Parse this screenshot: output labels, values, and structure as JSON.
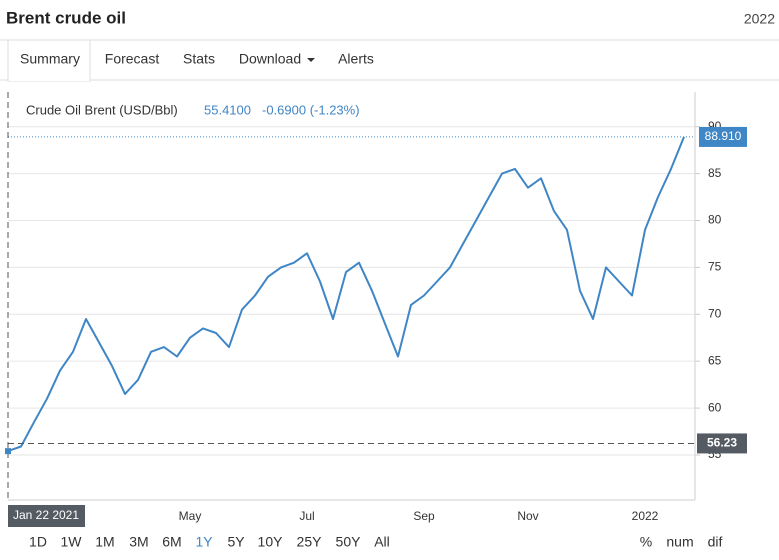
{
  "header": {
    "title": "Brent crude oil",
    "year": "2022"
  },
  "tabs": [
    {
      "label": "Summary",
      "active": true
    },
    {
      "label": "Forecast",
      "active": false
    },
    {
      "label": "Stats",
      "active": false
    },
    {
      "label": "Download",
      "active": false
    },
    {
      "label": "Alerts",
      "active": false
    }
  ],
  "chart_data": {
    "type": "line",
    "legend": {
      "name": "Crude Oil Brent (USD/Bbl)",
      "price": "55.4100",
      "change": "-0.6900 (-1.23%)"
    },
    "categories": [
      "Jan 22 2021",
      null,
      null,
      null,
      null,
      null,
      null,
      null,
      null,
      null,
      null,
      null,
      null,
      null,
      "May",
      null,
      null,
      null,
      null,
      null,
      null,
      null,
      null,
      "Jul",
      null,
      null,
      null,
      null,
      null,
      null,
      null,
      null,
      "Sep",
      null,
      null,
      null,
      null,
      null,
      null,
      null,
      "Nov",
      null,
      null,
      null,
      null,
      null,
      null,
      null,
      null,
      "2022",
      null,
      null,
      null
    ],
    "series": [
      {
        "name": "Crude Oil Brent (USD/Bbl)",
        "color": "#3f86c6",
        "values": [
          55.41,
          55.9,
          58.5,
          61.0,
          64.0,
          66.0,
          69.5,
          67.0,
          64.5,
          61.5,
          63.0,
          66.0,
          66.5,
          65.5,
          67.5,
          68.5,
          68.0,
          66.5,
          70.5,
          72.0,
          74.0,
          75.0,
          75.5,
          76.5,
          73.5,
          69.5,
          74.5,
          75.5,
          72.5,
          69.0,
          65.5,
          71.0,
          72.0,
          73.5,
          75.0,
          77.5,
          80.0,
          82.5,
          85.0,
          85.5,
          83.5,
          84.5,
          81.0,
          79.0,
          72.5,
          69.5,
          75.0,
          73.5,
          72.0,
          79.0,
          82.5,
          85.5,
          88.91
        ],
        "value_labels": [
          null,
          null,
          null,
          null,
          null,
          null,
          null,
          null,
          null,
          null,
          null,
          null,
          null,
          null,
          null,
          null,
          null,
          null,
          null,
          null,
          null,
          null,
          null,
          null,
          null,
          null,
          null,
          null,
          null,
          null,
          null,
          null,
          null,
          null,
          null,
          null,
          null,
          null,
          null,
          null,
          null,
          null,
          null,
          null,
          null,
          null,
          null,
          null,
          null,
          null,
          null,
          null,
          "88.910"
        ]
      }
    ],
    "crosshair_value": 56.23,
    "ylim": [
      50.2,
      93.7
    ],
    "yticks": [
      55,
      60,
      65,
      70,
      75,
      80,
      85,
      90
    ],
    "grid": true
  },
  "ranges": [
    {
      "label": "1D",
      "active": false
    },
    {
      "label": "1W",
      "active": false
    },
    {
      "label": "1M",
      "active": false
    },
    {
      "label": "3M",
      "active": false
    },
    {
      "label": "6M",
      "active": false
    },
    {
      "label": "1Y",
      "active": true
    },
    {
      "label": "5Y",
      "active": false
    },
    {
      "label": "10Y",
      "active": false
    },
    {
      "label": "25Y",
      "active": false
    },
    {
      "label": "50Y",
      "active": false
    },
    {
      "label": "All",
      "active": false
    }
  ],
  "modes": [
    "%",
    "num",
    "dif"
  ]
}
